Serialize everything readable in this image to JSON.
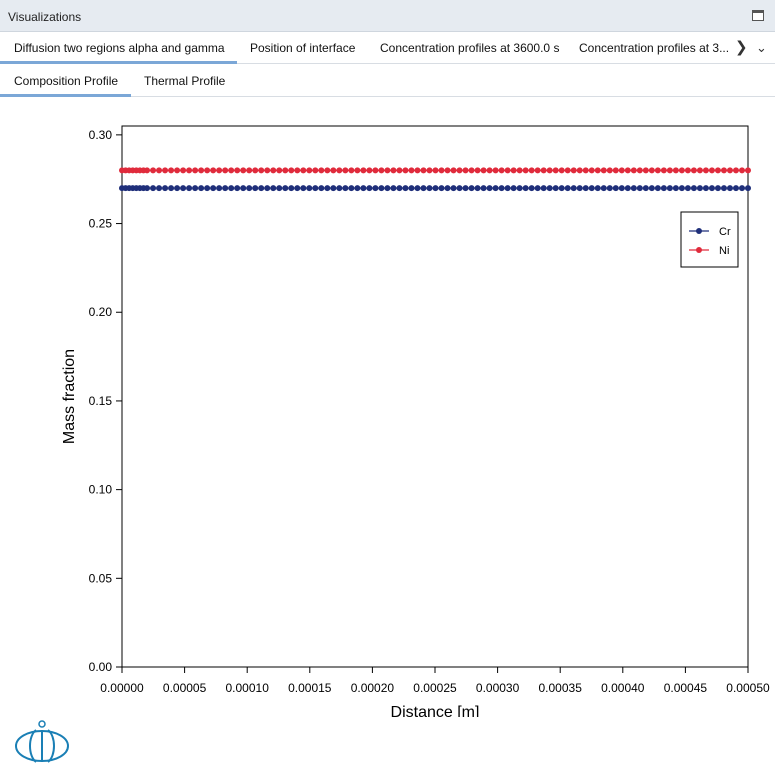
{
  "window": {
    "title": "Visualizations"
  },
  "tabs": [
    {
      "label": "Diffusion two regions alpha and gamma",
      "active": true
    },
    {
      "label": "Position of interface",
      "active": false
    },
    {
      "label": "Concentration profiles at 3600.0 s",
      "active": false
    },
    {
      "label": "Concentration profiles at 3...",
      "active": false
    }
  ],
  "subtabs": [
    {
      "label": "Composition Profile",
      "active": true
    },
    {
      "label": "Thermal Profile",
      "active": false
    }
  ],
  "chart_data": {
    "type": "scatter",
    "xlabel": "Distance [m]",
    "ylabel": "Mass fraction",
    "xlim": [
      0.0,
      0.0005
    ],
    "ylim": [
      0.0,
      0.305
    ],
    "x_ticks": [
      "0.00000",
      "0.00005",
      "0.00010",
      "0.00015",
      "0.00020",
      "0.00025",
      "0.00030",
      "0.00035",
      "0.00040",
      "0.00045",
      "0.00050"
    ],
    "y_ticks": [
      "0.00",
      "0.05",
      "0.10",
      "0.15",
      "0.20",
      "0.25",
      "0.30"
    ],
    "legend_position": "top-right",
    "grid": false,
    "series": [
      {
        "name": "Cr",
        "color": "#1f2f7a",
        "y": 0.27
      },
      {
        "name": "Ni",
        "color": "#e02b3c",
        "y": 0.28
      }
    ],
    "point_count": 100,
    "dense_start_points": 8,
    "dense_end_x": 2e-05
  }
}
